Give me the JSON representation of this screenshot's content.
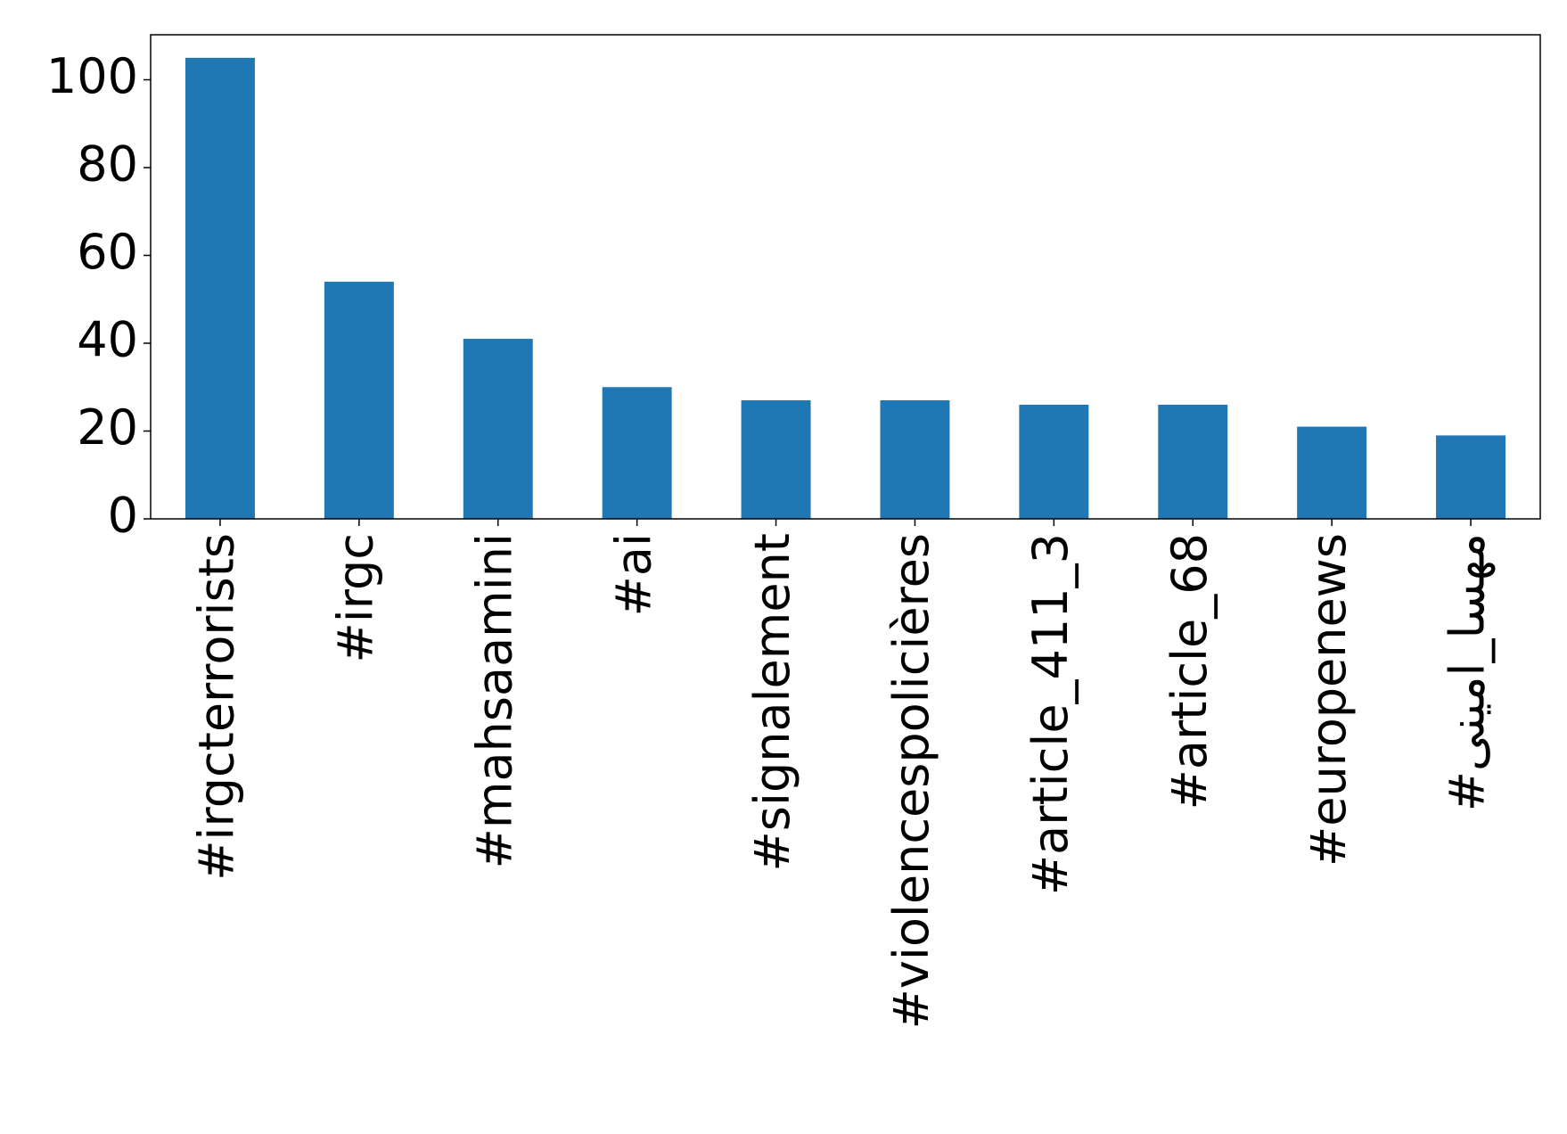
{
  "chart_data": {
    "type": "bar",
    "categories": [
      "#irgcterrorists",
      "#irgc",
      "#mahsaamini",
      "#ai",
      "#signalement",
      "#violencespolicières",
      "#article_411_3",
      "#article_68",
      "#europenews",
      "#مهسا_امینی"
    ],
    "values": [
      105,
      54,
      41,
      30,
      27,
      27,
      26,
      26,
      21,
      19
    ],
    "color": "#1f77b4",
    "ylim": [
      0,
      110.25
    ],
    "yticks": [
      0,
      20,
      40,
      60,
      80,
      100
    ],
    "grid": false
  }
}
